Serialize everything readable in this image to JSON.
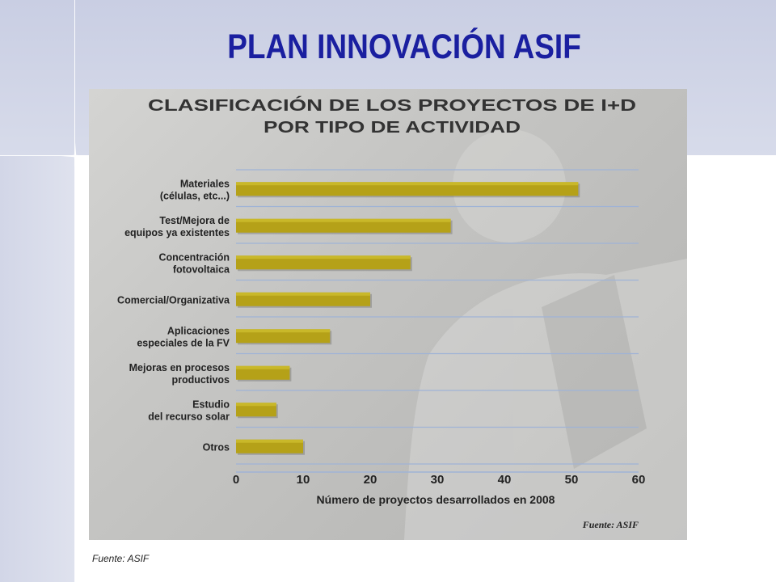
{
  "slide": {
    "title": "PLAN INNOVACIÓN ASIF",
    "source_note": "Fuente: ASIF"
  },
  "colors": {
    "title": "#1a1fa0",
    "bar": "#b5a118",
    "bar_highlight": "#d2c230",
    "grid": "#9fb3d6"
  },
  "chart_data": {
    "type": "bar",
    "orientation": "horizontal",
    "title_line1": "CLASIFICACIÓN DE LOS PROYECTOS DE I+D",
    "title_line2": "POR TIPO DE ACTIVIDAD",
    "xlabel": "Número de proyectos desarrollados en 2008",
    "xlim": [
      0,
      60
    ],
    "xticks": [
      "0",
      "10",
      "20",
      "30",
      "40",
      "50",
      "60"
    ],
    "source": "Fuente: ASIF",
    "grid": true,
    "categories": [
      [
        "Materiales",
        "(células, etc...)"
      ],
      [
        "Test/Mejora de",
        "equipos ya existentes"
      ],
      [
        "Concentración",
        "fotovoltaica"
      ],
      [
        "Comercial/Organizativa"
      ],
      [
        "Aplicaciones",
        "especiales de la FV"
      ],
      [
        "Mejoras en procesos",
        "productivos"
      ],
      [
        "Estudio",
        "del recurso solar"
      ],
      [
        "Otros"
      ]
    ],
    "values": [
      51,
      32,
      26,
      20,
      14,
      8,
      6,
      10
    ]
  }
}
